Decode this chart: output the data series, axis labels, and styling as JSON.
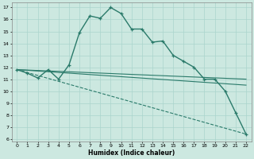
{
  "xlabel": "Humidex (Indice chaleur)",
  "background_color": "#cce8e0",
  "grid_color": "#aad4cc",
  "line_color": "#2a7a6a",
  "xlim": [
    -0.5,
    22.5
  ],
  "ylim": [
    5.8,
    17.4
  ],
  "xticks": [
    0,
    1,
    2,
    3,
    4,
    5,
    6,
    7,
    8,
    9,
    10,
    11,
    12,
    13,
    14,
    15,
    16,
    17,
    18,
    19,
    20,
    21,
    22
  ],
  "yticks": [
    6,
    7,
    8,
    9,
    10,
    11,
    12,
    13,
    14,
    15,
    16,
    17
  ],
  "curve_x": [
    0,
    1,
    2,
    3,
    4,
    5,
    6,
    7,
    8,
    9,
    10,
    11,
    12,
    13,
    14,
    15,
    16,
    17,
    18,
    19,
    20,
    21,
    22
  ],
  "curve_y": [
    11.8,
    11.5,
    11.1,
    11.8,
    11.0,
    12.2,
    14.9,
    16.3,
    16.1,
    17.0,
    16.5,
    15.2,
    15.2,
    14.1,
    14.2,
    13.0,
    12.5,
    12.0,
    11.0,
    11.0,
    10.0,
    8.2,
    6.4
  ],
  "line1_x": [
    0,
    22
  ],
  "line1_y": [
    11.8,
    11.0
  ],
  "line2_x": [
    0,
    22
  ],
  "line2_y": [
    11.8,
    10.5
  ],
  "line3_x": [
    0,
    22
  ],
  "line3_y": [
    11.8,
    6.4
  ]
}
